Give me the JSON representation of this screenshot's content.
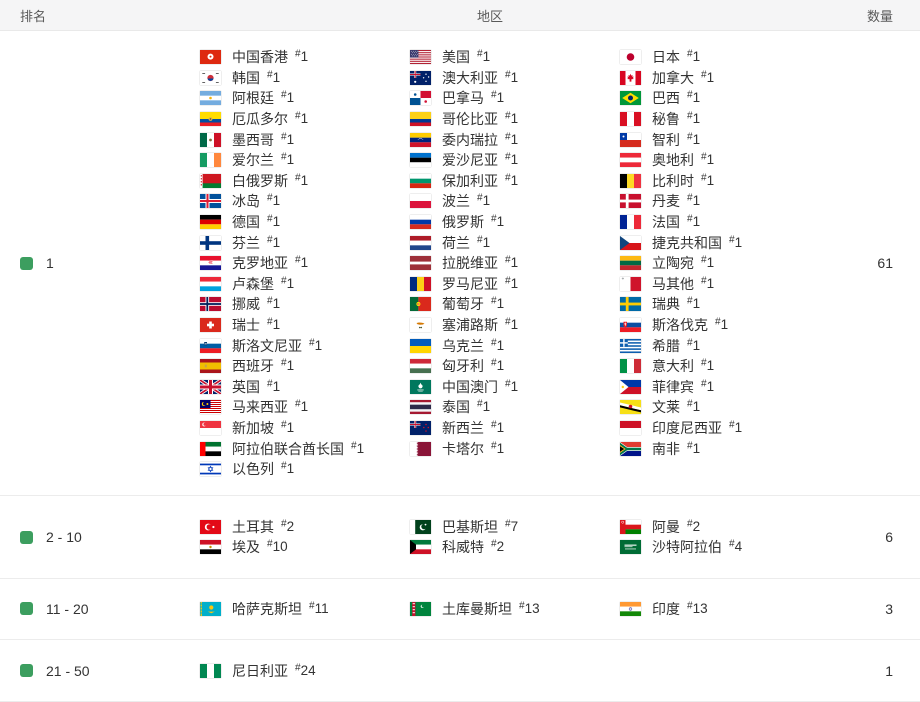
{
  "header": {
    "rank": "排名",
    "region": "地区",
    "count": "数量"
  },
  "rank_prefix": "#",
  "colors": {
    "indicator_green": "#3C9E5F",
    "header_bg": "#f5f5f6",
    "row_border": "#ececec"
  },
  "groups": [
    {
      "rank_label": "1",
      "count": "61",
      "columns": [
        [
          {
            "flag": "hk",
            "name": "中国香港",
            "rank": "1"
          },
          {
            "flag": "kr",
            "name": "韩国",
            "rank": "1"
          },
          {
            "flag": "ar",
            "name": "阿根廷",
            "rank": "1"
          },
          {
            "flag": "ec",
            "name": "厄瓜多尔",
            "rank": "1"
          },
          {
            "flag": "mx",
            "name": "墨西哥",
            "rank": "1"
          },
          {
            "flag": "ie",
            "name": "爱尔兰",
            "rank": "1"
          },
          {
            "flag": "by",
            "name": "白俄罗斯",
            "rank": "1"
          },
          {
            "flag": "is",
            "name": "冰岛",
            "rank": "1"
          },
          {
            "flag": "de",
            "name": "德国",
            "rank": "1"
          },
          {
            "flag": "fi",
            "name": "芬兰",
            "rank": "1"
          },
          {
            "flag": "hr",
            "name": "克罗地亚",
            "rank": "1"
          },
          {
            "flag": "lu",
            "name": "卢森堡",
            "rank": "1"
          },
          {
            "flag": "no",
            "name": "挪威",
            "rank": "1"
          },
          {
            "flag": "ch",
            "name": "瑞士",
            "rank": "1"
          },
          {
            "flag": "si",
            "name": "斯洛文尼亚",
            "rank": "1"
          },
          {
            "flag": "es",
            "name": "西班牙",
            "rank": "1"
          },
          {
            "flag": "gb",
            "name": "英国",
            "rank": "1"
          },
          {
            "flag": "my",
            "name": "马来西亚",
            "rank": "1"
          },
          {
            "flag": "sg",
            "name": "新加坡",
            "rank": "1"
          },
          {
            "flag": "ae",
            "name": "阿拉伯联合酋长国",
            "rank": "1"
          },
          {
            "flag": "il",
            "name": "以色列",
            "rank": "1"
          }
        ],
        [
          {
            "flag": "us",
            "name": "美国",
            "rank": "1"
          },
          {
            "flag": "au",
            "name": "澳大利亚",
            "rank": "1"
          },
          {
            "flag": "pa",
            "name": "巴拿马",
            "rank": "1"
          },
          {
            "flag": "co",
            "name": "哥伦比亚",
            "rank": "1"
          },
          {
            "flag": "ve",
            "name": "委内瑞拉",
            "rank": "1"
          },
          {
            "flag": "ee",
            "name": "爱沙尼亚",
            "rank": "1"
          },
          {
            "flag": "bg",
            "name": "保加利亚",
            "rank": "1"
          },
          {
            "flag": "pl",
            "name": "波兰",
            "rank": "1"
          },
          {
            "flag": "ru",
            "name": "俄罗斯",
            "rank": "1"
          },
          {
            "flag": "nl",
            "name": "荷兰",
            "rank": "1"
          },
          {
            "flag": "lv",
            "name": "拉脱维亚",
            "rank": "1"
          },
          {
            "flag": "ro",
            "name": "罗马尼亚",
            "rank": "1"
          },
          {
            "flag": "pt",
            "name": "葡萄牙",
            "rank": "1"
          },
          {
            "flag": "cy",
            "name": "塞浦路斯",
            "rank": "1"
          },
          {
            "flag": "ua",
            "name": "乌克兰",
            "rank": "1"
          },
          {
            "flag": "hu",
            "name": "匈牙利",
            "rank": "1"
          },
          {
            "flag": "mo",
            "name": "中国澳门",
            "rank": "1"
          },
          {
            "flag": "th",
            "name": "泰国",
            "rank": "1"
          },
          {
            "flag": "nz",
            "name": "新西兰",
            "rank": "1"
          },
          {
            "flag": "qa",
            "name": "卡塔尔",
            "rank": "1"
          }
        ],
        [
          {
            "flag": "jp",
            "name": "日本",
            "rank": "1"
          },
          {
            "flag": "ca",
            "name": "加拿大",
            "rank": "1"
          },
          {
            "flag": "br",
            "name": "巴西",
            "rank": "1"
          },
          {
            "flag": "pe",
            "name": "秘鲁",
            "rank": "1"
          },
          {
            "flag": "cl",
            "name": "智利",
            "rank": "1"
          },
          {
            "flag": "at",
            "name": "奥地利",
            "rank": "1"
          },
          {
            "flag": "be",
            "name": "比利时",
            "rank": "1"
          },
          {
            "flag": "dk",
            "name": "丹麦",
            "rank": "1"
          },
          {
            "flag": "fr",
            "name": "法国",
            "rank": "1"
          },
          {
            "flag": "cz",
            "name": "捷克共和国",
            "rank": "1"
          },
          {
            "flag": "lt",
            "name": "立陶宛",
            "rank": "1"
          },
          {
            "flag": "mt",
            "name": "马其他",
            "rank": "1"
          },
          {
            "flag": "se",
            "name": "瑞典",
            "rank": "1"
          },
          {
            "flag": "sk",
            "name": "斯洛伐克",
            "rank": "1"
          },
          {
            "flag": "gr",
            "name": "希腊",
            "rank": "1"
          },
          {
            "flag": "it",
            "name": "意大利",
            "rank": "1"
          },
          {
            "flag": "ph",
            "name": "菲律宾",
            "rank": "1"
          },
          {
            "flag": "bn",
            "name": "文莱",
            "rank": "1"
          },
          {
            "flag": "id",
            "name": "印度尼西亚",
            "rank": "1"
          },
          {
            "flag": "za",
            "name": "南非",
            "rank": "1"
          }
        ]
      ]
    },
    {
      "rank_label": "2 - 10",
      "count": "6",
      "columns": [
        [
          {
            "flag": "tr",
            "name": "土耳其",
            "rank": "2"
          },
          {
            "flag": "eg",
            "name": "埃及",
            "rank": "10"
          }
        ],
        [
          {
            "flag": "pk",
            "name": "巴基斯坦",
            "rank": "7"
          },
          {
            "flag": "kw",
            "name": "科威特",
            "rank": "2"
          }
        ],
        [
          {
            "flag": "om",
            "name": "阿曼",
            "rank": "2"
          },
          {
            "flag": "sa",
            "name": "沙特阿拉伯",
            "rank": "4"
          }
        ]
      ]
    },
    {
      "rank_label": "11 - 20",
      "count": "3",
      "columns": [
        [
          {
            "flag": "kz",
            "name": "哈萨克斯坦",
            "rank": "11"
          }
        ],
        [
          {
            "flag": "tm",
            "name": "土库曼斯坦",
            "rank": "13"
          }
        ],
        [
          {
            "flag": "in",
            "name": "印度",
            "rank": "13"
          }
        ]
      ]
    },
    {
      "rank_label": "21 - 50",
      "count": "1",
      "columns": [
        [
          {
            "flag": "ng",
            "name": "尼日利亚",
            "rank": "24"
          }
        ],
        [],
        []
      ]
    }
  ]
}
